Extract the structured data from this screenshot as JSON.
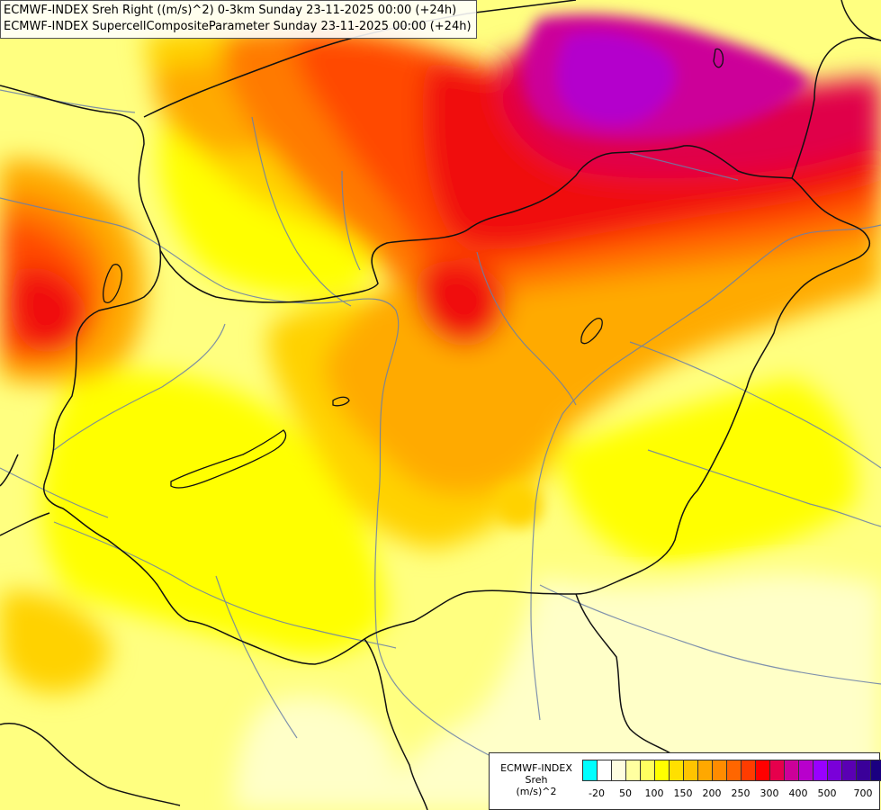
{
  "titles": {
    "line1": "ECMWF-INDEX Sreh Right ((m/s)^2) 0-3km Sunday 23-11-2025 00:00 (+24h)",
    "line2": "ECMWF-INDEX SupercellCompositeParameter Sunday 23-11-2025 00:00 (+24h)"
  },
  "legend": {
    "model": "ECMWF-INDEX",
    "parameter": "Sreh",
    "unit": "(m/s)^2",
    "colors": [
      "#00ffff",
      "#ffffff",
      "#fffde0",
      "#ffffa0",
      "#ffff60",
      "#ffff00",
      "#ffe000",
      "#ffc400",
      "#ffa800",
      "#ff8c00",
      "#ff6600",
      "#ff3c00",
      "#ff0000",
      "#e6004c",
      "#cc0099",
      "#b800cc",
      "#9900ff",
      "#7a00d9",
      "#5a00b3",
      "#3a0099",
      "#1a0080"
    ],
    "tick_labels": [
      "-20",
      "50",
      "100",
      "150",
      "200",
      "250",
      "300",
      "400",
      "500",
      "700"
    ]
  },
  "field_colors": {
    "pale": "#ffffc8",
    "light_yellow": "#ffff80",
    "yellow": "#ffff00",
    "gold": "#ffd200",
    "orange": "#ffaa00",
    "dark_orange": "#ff7a00",
    "red_orange": "#ff4a00",
    "red": "#f01010",
    "crimson": "#e0004a",
    "magenta": "#cc0099",
    "purple": "#b400cc"
  }
}
